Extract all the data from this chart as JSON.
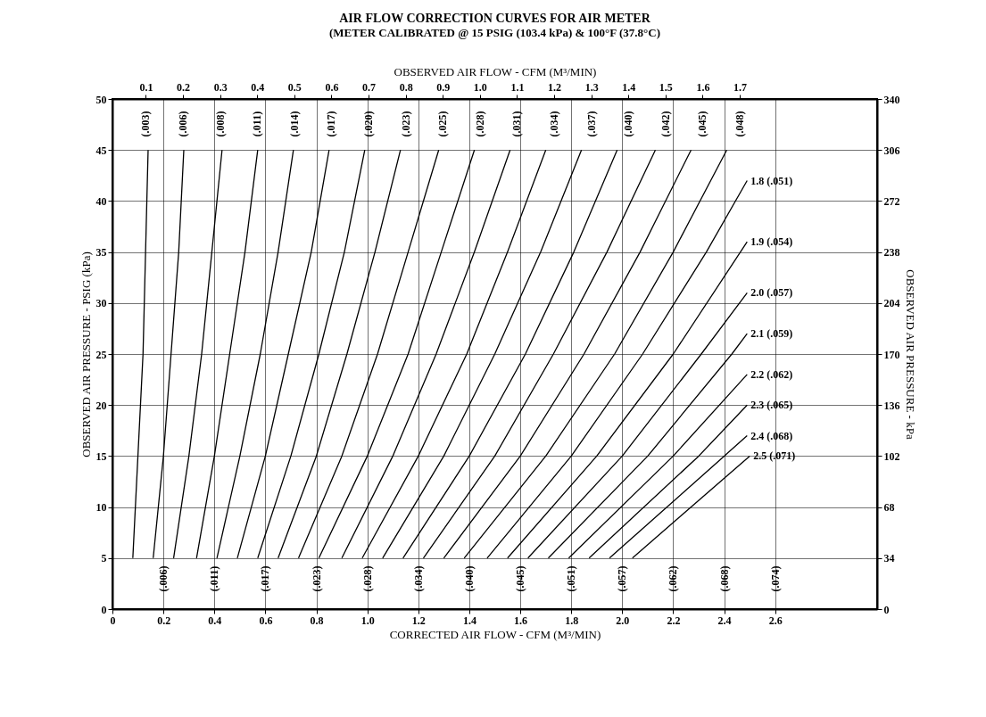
{
  "chart_data": {
    "type": "line",
    "title": "AIR FLOW CORRECTION CURVES FOR AIR METER",
    "subtitle": "(METER CALIBRATED @ 15 PSIG (103.4 kPa) & 100°F (37.8°C)",
    "xlabel": "CORRECTED AIR FLOW - CFM (M³/MIN)",
    "x2label": "OBSERVED AIR FLOW - CFM (M³/MIN)",
    "ylabel": "OBSERVED AIR PRESSURE - PSIG (kPa)",
    "y2label": "OBSERVED AIR PRESSURE - kPa",
    "xlim": [
      0,
      3
    ],
    "xticks": [
      {
        "value": 0,
        "label": "0"
      },
      0.2,
      0.4,
      0.6,
      0.8,
      {
        "value": 1,
        "label": "1.0"
      },
      1.2,
      1.4,
      1.6,
      1.8,
      {
        "value": 2,
        "label": "2.0"
      },
      2.2,
      2.4,
      2.6
    ],
    "x2lim": [
      0.01,
      2.07
    ],
    "x2ticks": [
      0.1,
      0.2,
      0.3,
      0.4,
      0.5,
      0.6,
      0.7,
      0.8,
      0.9,
      {
        "value": 1,
        "label": "1.0"
      },
      1.1,
      1.2,
      1.3,
      1.4,
      1.5,
      1.6,
      1.7
    ],
    "ylim": [
      0,
      50
    ],
    "yticks": [
      0,
      5,
      10,
      15,
      20,
      25,
      30,
      35,
      40,
      45,
      50
    ],
    "y2lim": [
      0,
      340
    ],
    "y2ticks": [
      0,
      34,
      68,
      102,
      136,
      170,
      204,
      238,
      272,
      306,
      340
    ],
    "grid": true,
    "series": [
      {
        "color": "#000000",
        "x": [
          0.08,
          0.1,
          0.12,
          0.13,
          0.14
        ],
        "values": [
          5,
          15,
          25,
          35,
          45
        ]
      },
      {
        "color": "#000000",
        "x": [
          0.16,
          0.2,
          0.23,
          0.26,
          0.28
        ],
        "values": [
          5,
          15,
          25,
          35,
          45
        ]
      },
      {
        "color": "#000000",
        "x": [
          0.24,
          0.3,
          0.35,
          0.39,
          0.43
        ],
        "values": [
          5,
          15,
          25,
          35,
          45
        ]
      },
      {
        "color": "#000000",
        "x": [
          0.33,
          0.4,
          0.46,
          0.52,
          0.57
        ],
        "values": [
          5,
          15,
          25,
          35,
          45
        ]
      },
      {
        "color": "#000000",
        "x": [
          0.41,
          0.5,
          0.58,
          0.65,
          0.71
        ],
        "values": [
          5,
          15,
          25,
          35,
          45
        ]
      },
      {
        "color": "#000000",
        "x": [
          0.49,
          0.6,
          0.69,
          0.78,
          0.85
        ],
        "values": [
          5,
          15,
          25,
          35,
          45
        ]
      },
      {
        "color": "#000000",
        "x": [
          0.57,
          0.7,
          0.81,
          0.91,
          0.99
        ],
        "values": [
          5,
          15,
          25,
          35,
          45
        ]
      },
      {
        "color": "#000000",
        "x": [
          0.65,
          0.8,
          0.92,
          1.03,
          1.13
        ],
        "values": [
          5,
          15,
          25,
          35,
          45
        ]
      },
      {
        "color": "#000000",
        "x": [
          0.73,
          0.9,
          1.04,
          1.16,
          1.28
        ],
        "values": [
          5,
          15,
          25,
          35,
          45
        ]
      },
      {
        "color": "#000000",
        "x": [
          0.81,
          1.0,
          1.16,
          1.29,
          1.42
        ],
        "values": [
          5,
          15,
          25,
          35,
          45
        ]
      },
      {
        "color": "#000000",
        "x": [
          0.9,
          1.1,
          1.27,
          1.42,
          1.56
        ],
        "values": [
          5,
          15,
          25,
          35,
          45
        ]
      },
      {
        "color": "#000000",
        "x": [
          0.98,
          1.2,
          1.39,
          1.55,
          1.7
        ],
        "values": [
          5,
          15,
          25,
          35,
          45
        ]
      },
      {
        "color": "#000000",
        "x": [
          1.06,
          1.3,
          1.5,
          1.68,
          1.84
        ],
        "values": [
          5,
          15,
          25,
          35,
          45
        ]
      },
      {
        "color": "#000000",
        "x": [
          1.14,
          1.4,
          1.62,
          1.81,
          1.98
        ],
        "values": [
          5,
          15,
          25,
          35,
          45
        ]
      },
      {
        "color": "#000000",
        "x": [
          1.22,
          1.5,
          1.73,
          1.94,
          2.13
        ],
        "values": [
          5,
          15,
          25,
          35,
          45
        ]
      },
      {
        "color": "#000000",
        "x": [
          1.3,
          1.6,
          1.85,
          2.07,
          2.27
        ],
        "values": [
          5,
          15,
          25,
          35,
          45
        ]
      },
      {
        "color": "#000000",
        "x": [
          1.38,
          1.7,
          1.97,
          2.2,
          2.41
        ],
        "values": [
          5,
          15,
          25,
          35,
          45
        ]
      },
      {
        "name": "1.8 (.051)",
        "color": "#000000",
        "x": [
          1.47,
          1.8,
          2.08,
          2.33,
          2.49
        ],
        "values": [
          5,
          15,
          25,
          35,
          42
        ]
      },
      {
        "name": "1.9 (.054)",
        "color": "#000000",
        "x": [
          1.55,
          1.9,
          2.2,
          2.49
        ],
        "values": [
          5,
          15,
          25,
          36
        ]
      },
      {
        "name": "2.0 (.057)",
        "color": "#000000",
        "x": [
          1.63,
          2.0,
          2.31,
          2.49
        ],
        "values": [
          5,
          15,
          25,
          31
        ]
      },
      {
        "name": "2.1 (.059)",
        "color": "#000000",
        "x": [
          1.71,
          2.1,
          2.43,
          2.49
        ],
        "values": [
          5,
          15,
          25,
          27
        ]
      },
      {
        "name": "2.2 (.062)",
        "color": "#000000",
        "x": [
          1.79,
          2.2,
          2.49
        ],
        "values": [
          5,
          15,
          23
        ]
      },
      {
        "name": "2.3 (.065)",
        "color": "#000000",
        "x": [
          1.87,
          2.3,
          2.49
        ],
        "values": [
          5,
          15,
          20
        ]
      },
      {
        "name": "2.4 (.068)",
        "color": "#000000",
        "x": [
          1.95,
          2.4,
          2.49
        ],
        "values": [
          5,
          15,
          17
        ]
      },
      {
        "name": "2.5 (.071)",
        "color": "#000000",
        "x": [
          2.04,
          2.5
        ],
        "values": [
          5,
          15
        ]
      }
    ],
    "annotations": [
      "(.003)",
      "(.006)",
      "(.008)",
      "(.011)",
      "(.014)",
      "(.017)",
      "(.020)",
      "(.023)",
      "(.025)",
      "(.028)",
      "(.031)",
      "(.034)",
      "(.037)",
      "(.040)",
      "(.042)",
      "(.045)",
      "(.048)",
      "(.006)",
      "(.011)",
      "(.017)",
      "(.023)",
      "(.028)",
      "(.034)",
      "(.040)",
      "(.045)",
      "(.051)",
      "(.057)",
      "(.062)",
      "(.068)",
      "(.074)"
    ]
  }
}
